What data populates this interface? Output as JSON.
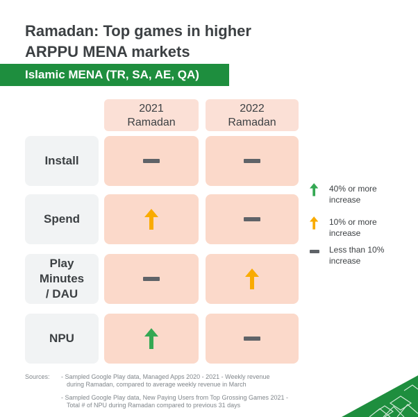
{
  "title_line1": "Ramadan: Top games in higher",
  "title_line2": "ARPPU MENA markets",
  "banner": "Islamic MENA (TR, SA, AE, QA)",
  "columns": [
    {
      "line1": "2021",
      "line2": "Ramadan"
    },
    {
      "line1": "2022",
      "line2": "Ramadan"
    }
  ],
  "rows": [
    {
      "label_lines": [
        "Install"
      ],
      "values": [
        "less-than-10",
        "less-than-10"
      ]
    },
    {
      "label_lines": [
        "Spend"
      ],
      "values": [
        "10-or-more",
        "less-than-10"
      ]
    },
    {
      "label_lines": [
        "Play",
        "Minutes",
        "/ DAU"
      ],
      "values": [
        "less-than-10",
        "10-or-more"
      ]
    },
    {
      "label_lines": [
        "NPU"
      ],
      "values": [
        "40-or-more",
        "less-than-10"
      ]
    }
  ],
  "legend": [
    {
      "key": "40-or-more",
      "icon": "green-up-arrow-icon",
      "line1": "40% or more",
      "line2": "increase"
    },
    {
      "key": "10-or-more",
      "icon": "orange-up-arrow-icon",
      "line1": "10% or more",
      "line2": "increase"
    },
    {
      "key": "less-than-10",
      "icon": "gray-dash-icon",
      "line1": "Less than 10%",
      "line2": "increase"
    }
  ],
  "sources": {
    "label": "Sources:",
    "item1_line1": "- Sampled Google Play data, Managed Apps 2020 - 2021 - Weekly revenue",
    "item1_line2": "during Ramadan, compared to average weekly revenue in March",
    "item2_line1": "- Sampled Google Play data, New Paying Users from Top Grossing Games 2021 -",
    "item2_line2": "Total # of NPU during Ramadan compared to previous 31 days"
  },
  "colors": {
    "green": "#34a853",
    "orange": "#f9ab00",
    "gray": "#5f6368",
    "banner": "#1e8e3e",
    "cell": "#fbd9ca"
  }
}
